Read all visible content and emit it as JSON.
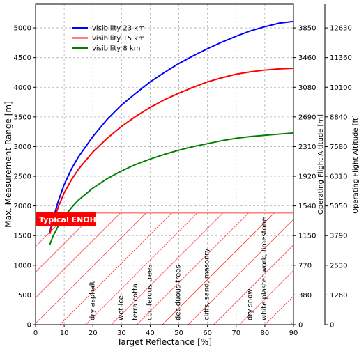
{
  "chart_data": {
    "type": "line",
    "xlabel": "Target Reflectance [%]",
    "ylabel": "Max. Measurement Range [m]",
    "xlim": [
      0,
      90
    ],
    "ylim": [
      0,
      5400
    ],
    "grid": true,
    "legend_position": "upper-left",
    "x_ticks": [
      "0",
      "10",
      "20",
      "30",
      "40",
      "50",
      "60",
      "70",
      "80",
      "90"
    ],
    "y_ticks": [
      "0",
      "500",
      "1000",
      "1500",
      "2000",
      "2500",
      "3000",
      "3500",
      "4000",
      "4500",
      "5000"
    ],
    "secondary_axes": [
      {
        "label": "Operating Flight Altitude [m]",
        "ticks": [
          {
            "y": 0,
            "label": "0"
          },
          {
            "y": 500,
            "label": "380"
          },
          {
            "y": 1000,
            "label": "770"
          },
          {
            "y": 1500,
            "label": "1150"
          },
          {
            "y": 2000,
            "label": "1540"
          },
          {
            "y": 2500,
            "label": "1920"
          },
          {
            "y": 3000,
            "label": "2310"
          },
          {
            "y": 3500,
            "label": "2690"
          },
          {
            "y": 4000,
            "label": "3080"
          },
          {
            "y": 4500,
            "label": "3460"
          },
          {
            "y": 5000,
            "label": "3850"
          }
        ]
      },
      {
        "label": "Operating Flight Altitude [ft]",
        "ticks": [
          {
            "y": 0,
            "label": "0"
          },
          {
            "y": 500,
            "label": "1260"
          },
          {
            "y": 1000,
            "label": "2530"
          },
          {
            "y": 1500,
            "label": "3790"
          },
          {
            "y": 2000,
            "label": "5050"
          },
          {
            "y": 2500,
            "label": "6310"
          },
          {
            "y": 3000,
            "label": "7580"
          },
          {
            "y": 3500,
            "label": "8840"
          },
          {
            "y": 4000,
            "label": "10100"
          },
          {
            "y": 4500,
            "label": "11360"
          },
          {
            "y": 5000,
            "label": "12630"
          }
        ]
      }
    ],
    "series": [
      {
        "name": "visibility 23 km",
        "color": "#0000ff",
        "x": [
          5,
          6,
          8,
          10,
          12.5,
          15,
          20,
          25,
          30,
          35,
          40,
          45,
          50,
          55,
          60,
          65,
          70,
          75,
          80,
          85,
          90
        ],
        "y": [
          1560,
          1760,
          2090,
          2360,
          2620,
          2830,
          3170,
          3460,
          3700,
          3900,
          4090,
          4250,
          4400,
          4530,
          4650,
          4760,
          4860,
          4950,
          5020,
          5080,
          5110
        ]
      },
      {
        "name": "visibility 15 km",
        "color": "#ff0000",
        "x": [
          5,
          6,
          8,
          10,
          12.5,
          15,
          20,
          25,
          30,
          35,
          40,
          45,
          50,
          55,
          60,
          65,
          70,
          75,
          80,
          85,
          90
        ],
        "y": [
          1530,
          1710,
          1990,
          2220,
          2440,
          2620,
          2910,
          3140,
          3340,
          3510,
          3660,
          3790,
          3900,
          4000,
          4090,
          4160,
          4220,
          4260,
          4290,
          4310,
          4320
        ]
      },
      {
        "name": "visibility 8 km",
        "color": "#008000",
        "x": [
          5,
          6,
          8,
          10,
          12.5,
          15,
          20,
          25,
          30,
          35,
          40,
          45,
          50,
          55,
          60,
          65,
          70,
          75,
          80,
          85,
          90
        ],
        "y": [
          1350,
          1480,
          1670,
          1820,
          1970,
          2100,
          2300,
          2460,
          2590,
          2700,
          2790,
          2870,
          2940,
          3000,
          3050,
          3100,
          3140,
          3170,
          3190,
          3210,
          3230
        ]
      }
    ],
    "hatched_region": {
      "y_max": 1880,
      "label": "Typical ENOHD",
      "color": "#ff0000"
    },
    "annotations": [
      {
        "x": 20.5,
        "label": "dry asphalt"
      },
      {
        "x": 30.5,
        "label": "wet ice"
      },
      {
        "x": 35.5,
        "label": "terra cotta"
      },
      {
        "x": 40.5,
        "label": "coniferous trees"
      },
      {
        "x": 50.5,
        "label": "deciduous trees"
      },
      {
        "x": 60.5,
        "label": "cliffs, sand, masonry"
      },
      {
        "x": 75.5,
        "label": "dry snow"
      },
      {
        "x": 80.5,
        "label": "white plaster work, limestone"
      }
    ]
  }
}
